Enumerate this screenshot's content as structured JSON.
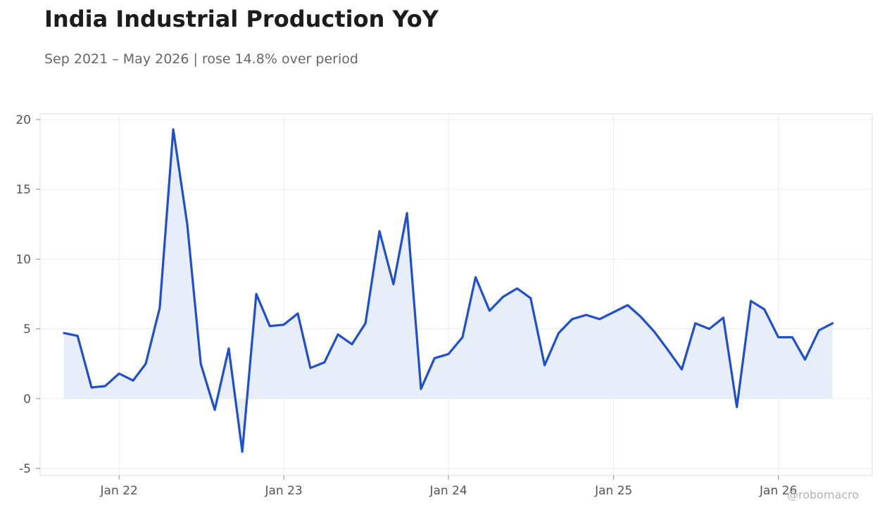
{
  "header": {
    "title": "India Industrial Production YoY",
    "subtitle": "Sep 2021 – May 2026 | rose 14.8% over period"
  },
  "watermark": "@robomacro",
  "colors": {
    "line": "#1f4fd1",
    "area": "#e8eef9",
    "grid": "#ececec",
    "frame": "#dddddd"
  },
  "chart_data": {
    "type": "area",
    "title": "India Industrial Production YoY",
    "subtitle": "Sep 2021 – May 2026 | rose 14.8% over period",
    "xlabel": "",
    "ylabel": "",
    "ylim": [
      -5.5,
      20.4
    ],
    "xlim": [
      "2021-07-10",
      "2026-07-28"
    ],
    "grid": true,
    "legend": "none",
    "y_ticks": [
      -5,
      0,
      5,
      10,
      15,
      20
    ],
    "y_tick_labels": [
      "-5",
      "0",
      "5",
      "10",
      "15",
      "20"
    ],
    "x_ticks": [
      "2022-01-01",
      "2023-01-01",
      "2024-01-01",
      "2025-01-01",
      "2026-01-01"
    ],
    "x_tick_labels": [
      "Jan 22",
      "Jan 23",
      "Jan 24",
      "Jan 25",
      "Jan 26"
    ],
    "series": [
      {
        "x": [
          "2021-09-01",
          "2021-10-01",
          "2021-11-01",
          "2021-12-01",
          "2022-01-01",
          "2022-02-01",
          "2022-03-01",
          "2022-04-01",
          "2022-05-01",
          "2022-06-01",
          "2022-07-01",
          "2022-08-01",
          "2022-09-01",
          "2022-10-01",
          "2022-11-01",
          "2022-12-01",
          "2023-01-01",
          "2023-02-01",
          "2023-03-01",
          "2023-04-01",
          "2023-05-01",
          "2023-06-01",
          "2023-07-01",
          "2023-08-01",
          "2023-09-01",
          "2023-10-01",
          "2023-11-01",
          "2023-12-01",
          "2024-01-01",
          "2024-02-01",
          "2024-03-01",
          "2024-04-01",
          "2024-05-01",
          "2024-06-01",
          "2024-07-01",
          "2024-08-01",
          "2024-09-01",
          "2024-10-01",
          "2024-11-01",
          "2024-12-01",
          "2025-01-01",
          "2025-02-01",
          "2025-03-01",
          "2025-04-01",
          "2025-05-01",
          "2025-06-01",
          "2025-07-01",
          "2025-08-01",
          "2025-09-01",
          "2025-10-01",
          "2025-11-01",
          "2025-12-01",
          "2026-01-01",
          "2026-02-01",
          "2026-03-01",
          "2026-04-01",
          "2026-05-01"
        ],
        "values": [
          4.7,
          4.5,
          0.8,
          0.9,
          1.8,
          1.3,
          2.5,
          6.5,
          19.3,
          12.5,
          2.5,
          -0.8,
          3.6,
          -3.8,
          7.5,
          5.2,
          5.3,
          6.1,
          2.2,
          2.6,
          4.6,
          3.9,
          5.4,
          12.0,
          8.2,
          13.3,
          0.7,
          2.9,
          3.2,
          4.4,
          8.7,
          6.3,
          7.3,
          7.9,
          7.2,
          2.4,
          4.7,
          5.7,
          6.0,
          5.7,
          6.2,
          6.7,
          5.9,
          4.8,
          3.5,
          2.1,
          5.4,
          5.0,
          5.8,
          -0.6,
          7.0,
          6.4,
          4.4,
          4.4,
          2.8,
          4.9,
          5.4
        ]
      }
    ]
  }
}
